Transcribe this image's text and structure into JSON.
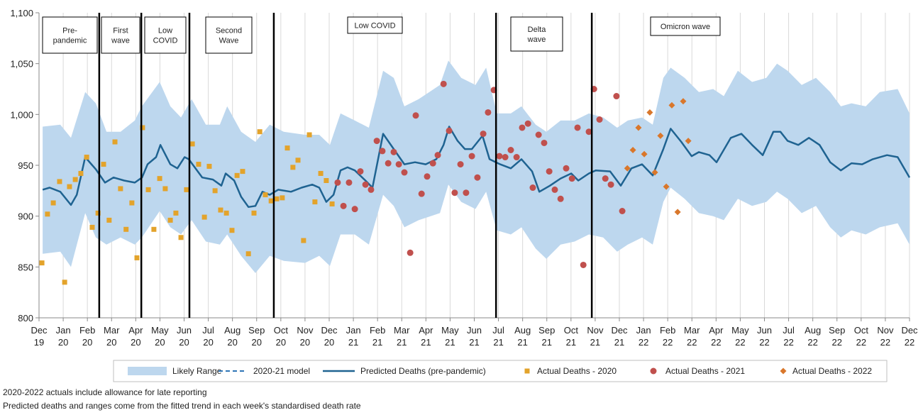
{
  "chart_data": {
    "type": "line",
    "xlim": [
      0,
      36
    ],
    "xticks": [
      {
        "value": 0,
        "label": "Dec 19"
      },
      {
        "value": 1,
        "label": "Jan 20"
      },
      {
        "value": 2,
        "label": "Feb 20"
      },
      {
        "value": 3,
        "label": "Mar 20"
      },
      {
        "value": 4,
        "label": "Apr 20"
      },
      {
        "value": 5,
        "label": "May 20"
      },
      {
        "value": 6,
        "label": "Jun 20"
      },
      {
        "value": 7,
        "label": "Jul 20"
      },
      {
        "value": 8,
        "label": "Aug 20"
      },
      {
        "value": 9,
        "label": "Sep 20"
      },
      {
        "value": 10,
        "label": "Oct 20"
      },
      {
        "value": 11,
        "label": "Nov 20"
      },
      {
        "value": 12,
        "label": "Dec 20"
      },
      {
        "value": 13,
        "label": "Jan 21"
      },
      {
        "value": 14,
        "label": "Feb 21"
      },
      {
        "value": 15,
        "label": "Mar 21"
      },
      {
        "value": 16,
        "label": "Apr 21"
      },
      {
        "value": 17,
        "label": "May 21"
      },
      {
        "value": 18,
        "label": "Jun 21"
      },
      {
        "value": 19,
        "label": "Jul 21"
      },
      {
        "value": 20,
        "label": "Aug 21"
      },
      {
        "value": 21,
        "label": "Sep 21"
      },
      {
        "value": 22,
        "label": "Oct 21"
      },
      {
        "value": 23,
        "label": "Nov 21"
      },
      {
        "value": 24,
        "label": "Dec 21"
      },
      {
        "value": 25,
        "label": "Jan 22"
      },
      {
        "value": 26,
        "label": "Feb 22"
      },
      {
        "value": 27,
        "label": "Mar 22"
      },
      {
        "value": 28,
        "label": "Apr 22"
      },
      {
        "value": 29,
        "label": "May 22"
      },
      {
        "value": 30,
        "label": "Jun 22"
      },
      {
        "value": 31,
        "label": "Jul 22"
      },
      {
        "value": 32,
        "label": "Aug 22"
      },
      {
        "value": 33,
        "label": "Sep 22"
      },
      {
        "value": 34,
        "label": "Oct 22"
      },
      {
        "value": 35,
        "label": "Nov 22"
      },
      {
        "value": 36,
        "label": "Dec 22"
      }
    ],
    "ylim": [
      800,
      1100
    ],
    "yticks": [
      800,
      850,
      900,
      950,
      {
        "value": 1000,
        "label": "1,000"
      },
      {
        "value": 1050,
        "label": "1,050"
      },
      {
        "value": 1100,
        "label": "1,100"
      }
    ],
    "grid": "x",
    "legend": "bottom",
    "series": [
      {
        "name": "Likely Range",
        "kind": "band",
        "color": "#bdd7ee",
        "x": [
          0.15,
          0.88,
          1.32,
          1.91,
          2.35,
          2.79,
          3.37,
          3.96,
          4.25,
          4.99,
          5.43,
          5.87,
          6.31,
          6.9,
          7.48,
          7.78,
          8.36,
          8.95,
          9.54,
          10.12,
          11.0,
          11.59,
          12.03,
          12.47,
          13.06,
          13.64,
          14.23,
          14.67,
          15.11,
          15.7,
          16.58,
          16.93,
          17.46,
          18.05,
          18.49,
          18.93,
          19.51,
          19.95,
          20.54,
          20.98,
          21.57,
          22.15,
          22.74,
          23.33,
          23.91,
          24.35,
          24.94,
          25.38,
          25.82,
          26.12,
          26.7,
          27.29,
          27.88,
          28.32,
          28.9,
          29.49,
          30.08,
          30.52,
          30.96,
          31.54,
          32.13,
          32.72,
          33.16,
          33.6,
          34.19,
          34.77,
          35.51,
          36
        ],
        "upper": [
          988,
          990,
          977,
          1022,
          1011,
          983,
          983,
          994,
          1008,
          1032,
          1008,
          997,
          1015,
          990,
          990,
          1008,
          983,
          973,
          990,
          983,
          980,
          980,
          970,
          1001,
          994,
          987,
          1043,
          1036,
          1008,
          1015,
          1029,
          1053,
          1036,
          1029,
          1046,
          1001,
          1001,
          1008,
          990,
          983,
          994,
          994,
          1001,
          997,
          987,
          994,
          997,
          990,
          1036,
          1046,
          1036,
          1022,
          1025,
          1018,
          1043,
          1032,
          1036,
          1050,
          1043,
          1029,
          1036,
          1022,
          1008,
          1011,
          1008,
          1022,
          1025,
          1001
        ],
        "lower": [
          863,
          865,
          850,
          903,
          879,
          872,
          879,
          872,
          879,
          905,
          889,
          882,
          896,
          875,
          872,
          882,
          861,
          844,
          861,
          856,
          854,
          861,
          851,
          882,
          882,
          872,
          921,
          910,
          889,
          896,
          903,
          931,
          914,
          907,
          924,
          886,
          882,
          889,
          868,
          858,
          872,
          875,
          882,
          879,
          865,
          872,
          879,
          872,
          914,
          928,
          917,
          903,
          900,
          896,
          917,
          910,
          914,
          924,
          917,
          903,
          910,
          889,
          879,
          886,
          882,
          889,
          893,
          872
        ]
      },
      {
        "name": "2020-21 model",
        "kind": "dashed",
        "color": "#2e75b6"
      },
      {
        "name": "Predicted Deaths (pre-pandemic)",
        "kind": "line",
        "color": "#1f6391",
        "x": [
          0.15,
          0.44,
          0.88,
          1.32,
          1.56,
          1.91,
          2.35,
          2.73,
          3.08,
          3.52,
          3.96,
          4.26,
          4.49,
          4.84,
          5.02,
          5.43,
          5.72,
          6.02,
          6.19,
          6.75,
          7.19,
          7.54,
          7.72,
          8.07,
          8.36,
          8.66,
          8.95,
          9.24,
          9.54,
          9.89,
          10.42,
          10.86,
          11.3,
          11.59,
          11.88,
          12.18,
          12.47,
          12.76,
          13.06,
          13.5,
          13.79,
          14.23,
          14.67,
          15.11,
          15.55,
          15.99,
          16.43,
          16.73,
          16.96,
          17.31,
          17.61,
          17.9,
          18.34,
          18.63,
          19.07,
          19.51,
          19.95,
          20.39,
          20.69,
          21.13,
          21.57,
          22.01,
          22.3,
          22.74,
          23.03,
          23.62,
          24.06,
          24.5,
          24.94,
          25.38,
          25.82,
          26.12,
          26.56,
          26.99,
          27.29,
          27.73,
          28.02,
          28.61,
          29.05,
          29.49,
          29.93,
          30.37,
          30.66,
          30.96,
          31.4,
          31.84,
          32.28,
          32.72,
          33.16,
          33.6,
          34.04,
          34.48,
          35.07,
          35.51,
          36
        ],
        "values": [
          926,
          928,
          924,
          911,
          921,
          958,
          946,
          933,
          938,
          935,
          933,
          938,
          951,
          958,
          970,
          951,
          947,
          958,
          956,
          938,
          936,
          930,
          942,
          935,
          919,
          909,
          910,
          924,
          921,
          926,
          924,
          928,
          931,
          928,
          914,
          921,
          945,
          948,
          945,
          935,
          928,
          981,
          966,
          951,
          953,
          951,
          956,
          970,
          988,
          974,
          966,
          966,
          979,
          956,
          951,
          947,
          956,
          944,
          924,
          930,
          937,
          942,
          935,
          942,
          945,
          944,
          930,
          947,
          951,
          940,
          966,
          986,
          973,
          959,
          963,
          960,
          953,
          977,
          981,
          970,
          960,
          983,
          983,
          974,
          970,
          977,
          970,
          953,
          945,
          952,
          951,
          956,
          960,
          958,
          938
        ]
      },
      {
        "name": "Actual Deaths - 2020",
        "kind": "square",
        "color": "#e3a32b",
        "x": [
          0.12,
          0.35,
          0.59,
          0.85,
          1.06,
          1.26,
          1.5,
          1.73,
          1.97,
          2.2,
          2.44,
          2.67,
          2.9,
          3.14,
          3.37,
          3.6,
          3.84,
          4.05,
          4.28,
          4.52,
          4.75,
          4.99,
          5.22,
          5.43,
          5.66,
          5.87,
          6.1,
          6.34,
          6.6,
          6.84,
          7.04,
          7.28,
          7.51,
          7.75,
          7.98,
          8.19,
          8.42,
          8.66,
          8.89,
          9.13,
          9.36,
          9.6,
          9.83,
          10.06,
          10.27,
          10.5,
          10.71,
          10.94,
          11.18,
          11.41,
          11.65,
          11.88,
          12.12
        ],
        "values": [
          854,
          902,
          913,
          934,
          835,
          929,
          936,
          942,
          958,
          889,
          903,
          951,
          896,
          973,
          927,
          887,
          913,
          859,
          987,
          926,
          887,
          937,
          927,
          896,
          903,
          879,
          926,
          971,
          951,
          899,
          949,
          925,
          906,
          903,
          886,
          940,
          944,
          863,
          903,
          983,
          921,
          915,
          917,
          918,
          967,
          948,
          955,
          876,
          980,
          914,
          942,
          935,
          912
        ]
      },
      {
        "name": "Actual Deaths - 2021",
        "kind": "circle",
        "color": "#c0504d",
        "x": [
          12.35,
          12.59,
          12.82,
          13.06,
          13.29,
          13.5,
          13.73,
          13.97,
          14.2,
          14.44,
          14.67,
          14.88,
          15.11,
          15.35,
          15.58,
          15.82,
          16.05,
          16.29,
          16.49,
          16.73,
          16.96,
          17.19,
          17.43,
          17.66,
          17.9,
          18.13,
          18.37,
          18.57,
          18.81,
          19.04,
          19.28,
          19.51,
          19.75,
          19.98,
          20.22,
          20.42,
          20.66,
          20.89,
          21.1,
          21.33,
          21.57,
          21.8,
          22.04,
          22.27,
          22.51,
          22.74,
          22.95,
          23.18,
          23.42,
          23.65,
          23.88,
          24.12
        ],
        "values": [
          933,
          910,
          933,
          907,
          944,
          931,
          926,
          974,
          964,
          952,
          963,
          951,
          943,
          864,
          999,
          922,
          939,
          952,
          960,
          1030,
          984,
          923,
          951,
          923,
          959,
          938,
          981,
          1002,
          1024,
          959,
          958,
          965,
          958,
          987,
          991,
          928,
          980,
          972,
          944,
          926,
          917,
          947,
          937,
          987,
          852,
          983,
          1025,
          995,
          937,
          931,
          1018,
          905
        ]
      },
      {
        "name": "Actual Deaths - 2022",
        "kind": "diamond",
        "color": "#d9772b",
        "x": [
          24.33,
          24.56,
          24.79,
          25.03,
          25.26,
          25.47,
          25.7,
          25.94,
          26.17,
          26.41,
          26.64,
          26.85
        ],
        "values": [
          947,
          965,
          987,
          961,
          1002,
          943,
          979,
          929,
          1009,
          904,
          1013,
          974
        ]
      }
    ],
    "phases": {
      "x": [
        2.49,
        4.23,
        6.22,
        9.71,
        18.9,
        22.86
      ],
      "labels": [
        [
          "Pre-",
          "pandemic"
        ],
        [
          "First",
          "wave"
        ],
        [
          "Low",
          "COVID"
        ],
        [
          "Second",
          "Wave"
        ],
        [
          "Low COVID"
        ],
        [
          "Delta",
          "wave"
        ],
        [
          "Omicron wave"
        ]
      ]
    },
    "notes": [
      "2020-2022  actuals include allowance for late reporting",
      "Predicted deaths and ranges come from the fitted trend in each week's standardised death rate"
    ]
  }
}
